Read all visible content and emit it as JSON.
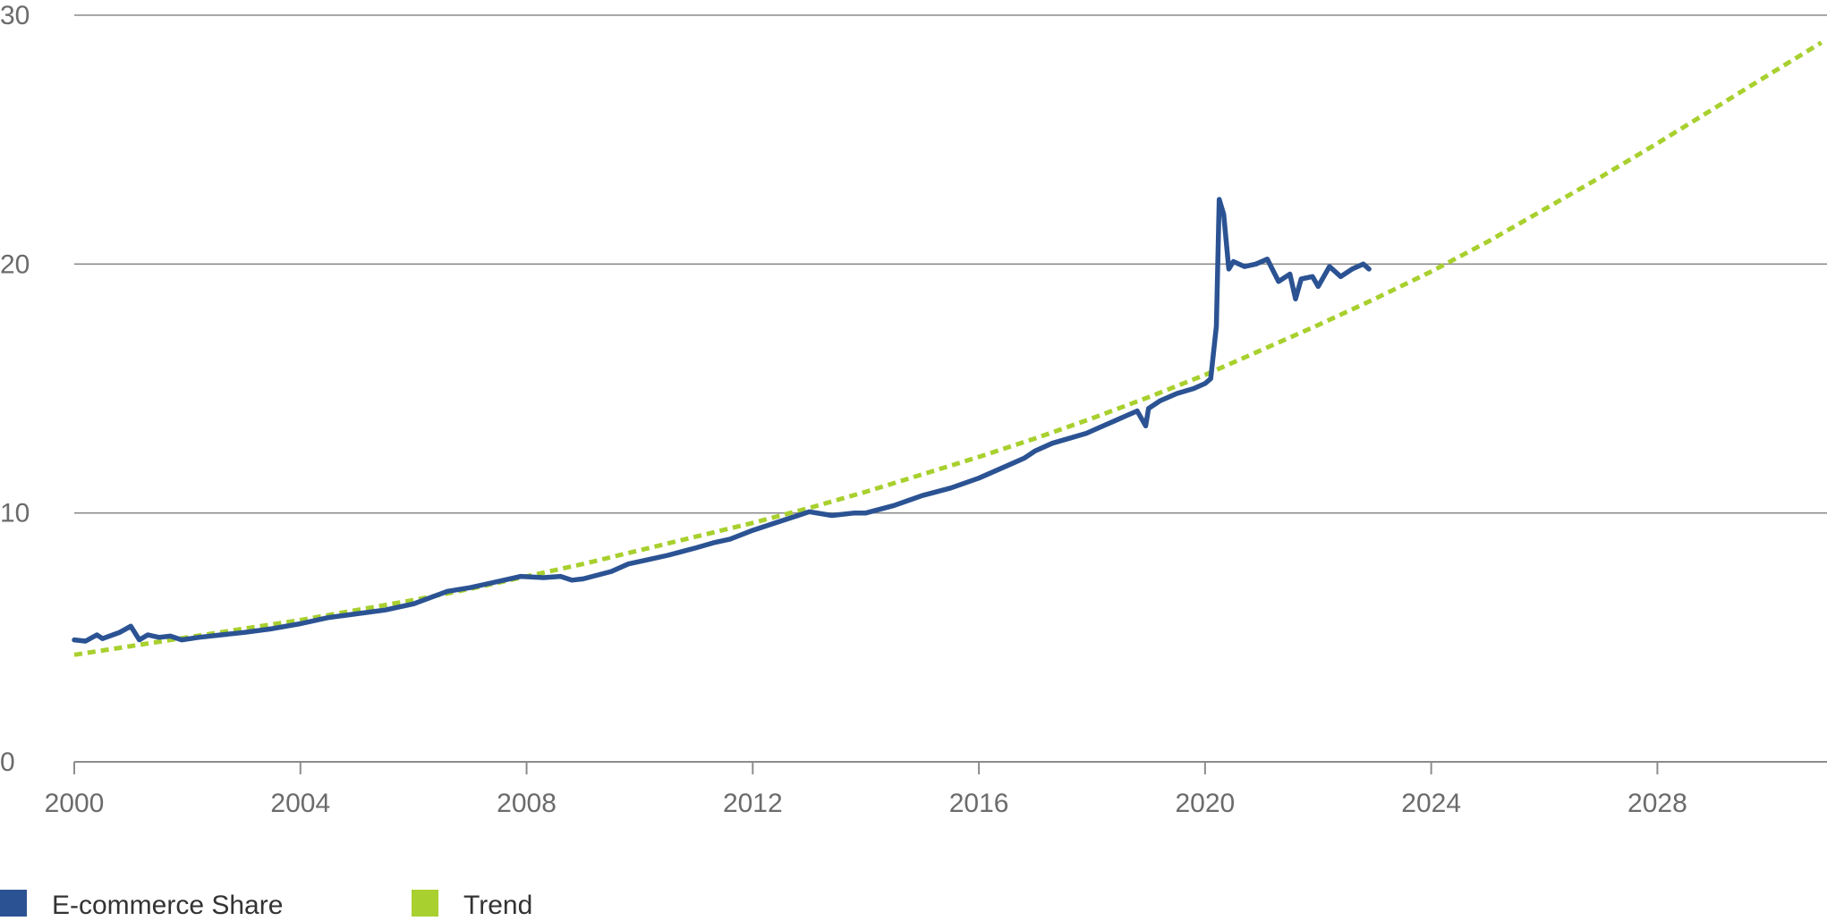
{
  "chart_data": {
    "type": "line",
    "title": "",
    "xlabel": "",
    "ylabel": "",
    "xlim": [
      2000,
      2031
    ],
    "ylim": [
      0,
      30
    ],
    "x_ticks": [
      {
        "value": 2000,
        "label": "2000"
      },
      {
        "value": 2004,
        "label": "2004"
      },
      {
        "value": 2008,
        "label": "2008"
      },
      {
        "value": 2012,
        "label": "2012"
      },
      {
        "value": 2016,
        "label": "2016"
      },
      {
        "value": 2020,
        "label": "2020"
      },
      {
        "value": 2024,
        "label": "2024"
      },
      {
        "value": 2028,
        "label": "2028"
      }
    ],
    "y_ticks": [
      {
        "value": 0,
        "label": "0"
      },
      {
        "value": 10,
        "label": "10"
      },
      {
        "value": 20,
        "label": "20"
      },
      {
        "value": 30,
        "label": "30"
      }
    ],
    "grid": "horizontal",
    "legend": "bottom-left",
    "series": [
      {
        "name": "E-commerce Share",
        "color": "#2b5393",
        "style": "solid",
        "x": [
          2000.0,
          2000.2,
          2000.4,
          2000.5,
          2000.8,
          2001.0,
          2001.15,
          2001.3,
          2001.5,
          2001.7,
          2001.9,
          2002.2,
          2002.6,
          2003.0,
          2003.5,
          2004.0,
          2004.5,
          2005.0,
          2005.5,
          2006.0,
          2006.3,
          2006.6,
          2007.0,
          2007.3,
          2007.6,
          2007.9,
          2008.3,
          2008.6,
          2008.8,
          2009.0,
          2009.5,
          2009.8,
          2010.1,
          2010.5,
          2011.0,
          2011.3,
          2011.6,
          2012.0,
          2012.4,
          2012.8,
          2013.0,
          2013.4,
          2013.8,
          2014.0,
          2014.5,
          2015.0,
          2015.5,
          2016.0,
          2016.5,
          2016.8,
          2017.0,
          2017.3,
          2017.6,
          2017.9,
          2018.1,
          2018.4,
          2018.6,
          2018.8,
          2018.95,
          2019.0,
          2019.2,
          2019.5,
          2019.8,
          2020.0,
          2020.1,
          2020.2,
          2020.25,
          2020.33,
          2020.42,
          2020.5,
          2020.7,
          2020.9,
          2021.1,
          2021.3,
          2021.5,
          2021.6,
          2021.7,
          2021.9,
          2022.0,
          2022.2,
          2022.4,
          2022.6,
          2022.8,
          2022.9
        ],
        "values": [
          4.9,
          4.85,
          5.1,
          4.95,
          5.2,
          5.45,
          4.9,
          5.1,
          5.0,
          5.05,
          4.9,
          5.0,
          5.1,
          5.2,
          5.35,
          5.55,
          5.8,
          5.95,
          6.1,
          6.35,
          6.6,
          6.85,
          7.0,
          7.15,
          7.3,
          7.45,
          7.4,
          7.45,
          7.3,
          7.35,
          7.65,
          7.95,
          8.1,
          8.3,
          8.6,
          8.8,
          8.95,
          9.3,
          9.6,
          9.9,
          10.05,
          9.9,
          10.0,
          10.0,
          10.3,
          10.7,
          11.0,
          11.4,
          11.9,
          12.2,
          12.5,
          12.8,
          13.0,
          13.2,
          13.4,
          13.7,
          13.9,
          14.1,
          13.5,
          14.2,
          14.5,
          14.8,
          15.0,
          15.2,
          15.4,
          17.5,
          22.6,
          22.0,
          19.8,
          20.1,
          19.9,
          20.0,
          20.2,
          19.3,
          19.6,
          18.6,
          19.4,
          19.5,
          19.1,
          19.9,
          19.5,
          19.8,
          20.0,
          19.8
        ]
      },
      {
        "name": "Trend",
        "color": "#a8d02e",
        "style": "dashed",
        "x": [
          2000,
          2001,
          2002,
          2003,
          2004,
          2005,
          2006,
          2007,
          2008,
          2009,
          2010,
          2011,
          2012,
          2013,
          2014,
          2015,
          2016,
          2017,
          2018,
          2019,
          2020,
          2021,
          2022,
          2023,
          2024,
          2025,
          2026,
          2027,
          2028,
          2029,
          2030,
          2030.9
        ],
        "values": [
          4.3,
          4.65,
          5.0,
          5.35,
          5.7,
          6.1,
          6.5,
          6.95,
          7.45,
          7.95,
          8.5,
          9.05,
          9.6,
          10.2,
          10.85,
          11.55,
          12.25,
          13.0,
          13.8,
          14.65,
          15.55,
          16.55,
          17.55,
          18.6,
          19.7,
          20.9,
          22.2,
          23.5,
          24.85,
          26.25,
          27.65,
          28.9
        ]
      }
    ]
  }
}
